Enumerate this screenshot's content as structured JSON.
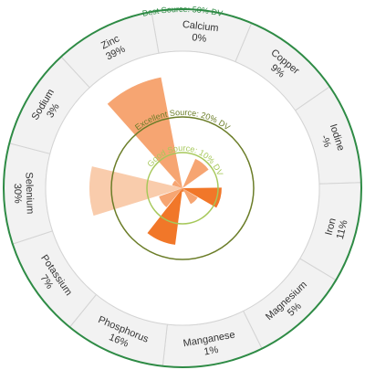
{
  "chart_data": {
    "type": "radial-bar",
    "title": "",
    "categories": [
      "Calcium",
      "Copper",
      "Iodine",
      "Iron",
      "Magnesium",
      "Manganese",
      "Phosphorus",
      "Potassium",
      "Selenium",
      "Sodium",
      "Zinc"
    ],
    "value_labels": [
      "0%",
      "9%",
      "-%",
      "11%",
      "5%",
      "1%",
      "16%",
      "7%",
      "30%",
      "3%",
      "39%"
    ],
    "values": [
      0,
      9,
      null,
      11,
      5,
      1,
      16,
      7,
      30,
      3,
      39
    ],
    "unit": "% DV",
    "rmax": 50,
    "reference_rings": [
      {
        "value": 10,
        "label": "Good Source: 10% DV",
        "color": "#a6c85a"
      },
      {
        "value": 20,
        "label": "Excellent Source: 20% DV",
        "color": "#6b7d28"
      },
      {
        "value": 50,
        "label": "Best Source: 50% DV",
        "color": "#2e8b45"
      }
    ],
    "colors": {
      "bar_light": "#f9c9a8",
      "bar_mid": "#f5a06a",
      "bar_dark": "#f0701e",
      "segment_bg": "#f2f2f2",
      "segment_border": "#d4d4d4"
    }
  }
}
